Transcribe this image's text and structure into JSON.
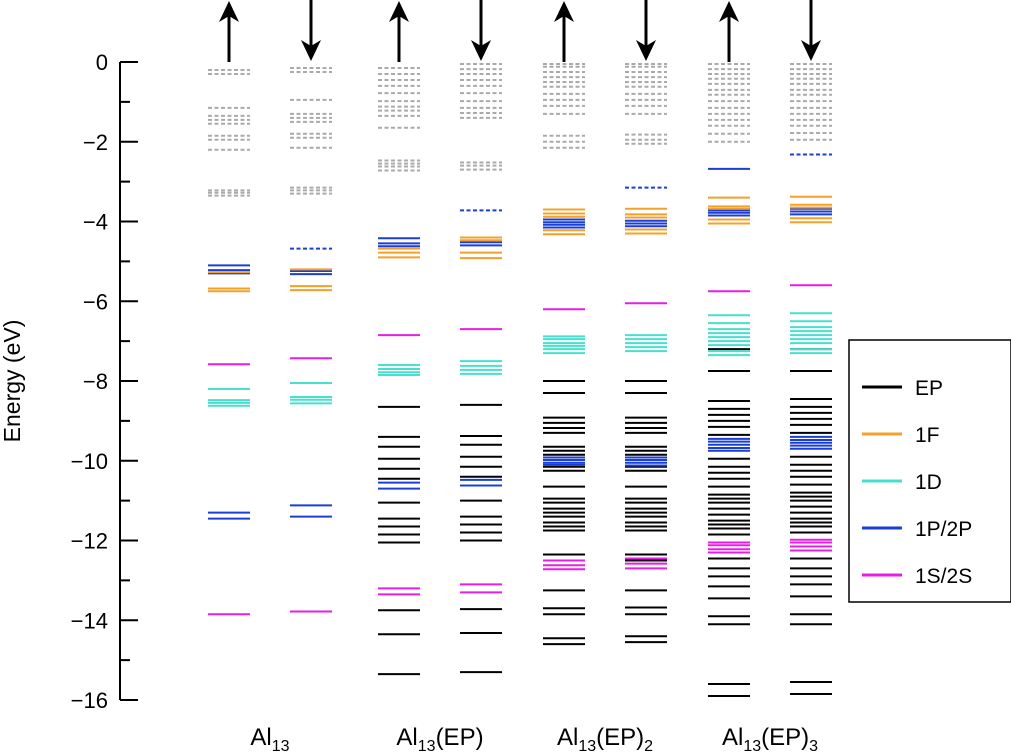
{
  "chart_data": {
    "type": "energy-level-diagram",
    "title": "",
    "ylabel": "Energy (eV)",
    "ylim": [
      -16,
      0
    ],
    "yticks": [
      0,
      -2,
      -4,
      -6,
      -8,
      -10,
      -12,
      -14,
      -16
    ],
    "ytick_labels": [
      "0",
      "−2",
      "−4",
      "−6",
      "−8",
      "−10",
      "−12",
      "−14",
      "−16"
    ],
    "colors": {
      "EP": "#000000",
      "1F": "#f5a028",
      "1D": "#47e0cc",
      "1P/2P": "#1a3fd9",
      "1S/2S": "#e61ee6",
      "unoccupied": "#aaaaaa"
    },
    "legend": {
      "placement": "right",
      "entries": [
        {
          "key": "EP",
          "label": "EP"
        },
        {
          "key": "1F",
          "label": "1F"
        },
        {
          "key": "1D",
          "label": "1D"
        },
        {
          "key": "1P/2P",
          "label": "1P/2P"
        },
        {
          "key": "1S/2S",
          "label": "1S/2S"
        }
      ]
    },
    "groups": [
      {
        "label_main": "Al",
        "label_sub": "13",
        "label_tail": "",
        "label_tail_sub": "",
        "spins": [
          {
            "arrow": "up",
            "levels": {
              "1S/2S": [
                -13.85,
                -7.58
              ],
              "1P/2P": [
                -11.45,
                -11.3,
                -5.3,
                -5.22,
                -5.1
              ],
              "1D": [
                -8.62,
                -8.55,
                -8.48,
                -8.2
              ],
              "1F": [
                -5.75,
                -5.68,
                -5.27
              ],
              "EP": [],
              "unoccupied": [
                -3.35,
                -3.28,
                -3.22,
                -2.2,
                -1.95,
                -1.85,
                -1.55,
                -1.45,
                -1.35,
                -1.15,
                -0.3,
                -0.2
              ],
              "lumo_dashed": []
            }
          },
          {
            "arrow": "down",
            "levels": {
              "1S/2S": [
                -13.78,
                -7.43
              ],
              "1P/2P": [
                -11.4,
                -11.12,
                -5.32,
                -5.24
              ],
              "1D": [
                -8.56,
                -8.47,
                -8.4,
                -8.05
              ],
              "1F": [
                -5.72,
                -5.62,
                -5.2
              ],
              "EP": [],
              "unoccupied": [
                -3.3,
                -3.22,
                -3.15,
                -2.15,
                -1.9,
                -1.8,
                -1.5,
                -1.4,
                -1.3,
                -0.95,
                -0.25,
                -0.15
              ],
              "lumo_dashed": [
                -4.68
              ]
            }
          }
        ]
      },
      {
        "label_main": "Al",
        "label_sub": "13",
        "label_tail": "(EP)",
        "label_tail_sub": "",
        "spins": [
          {
            "arrow": "up",
            "levels": {
              "1S/2S": [
                -13.35,
                -13.2,
                -6.85
              ],
              "1P/2P": [
                -10.7,
                -10.55,
                -4.62,
                -4.55,
                -4.42
              ],
              "1D": [
                -7.85,
                -7.78,
                -7.7,
                -7.6
              ],
              "1F": [
                -4.9,
                -4.78,
                -4.68
              ],
              "EP": [
                -15.35,
                -14.35,
                -13.75,
                -12.05,
                -11.85,
                -11.65,
                -11.45,
                -11.05,
                -10.45,
                -10.2,
                -9.95,
                -9.65,
                -9.4,
                -8.65
              ],
              "unoccupied": [
                -2.72,
                -2.62,
                -2.55,
                -2.47,
                -1.65,
                -1.35,
                -1.22,
                -1.12,
                -0.98,
                -0.78,
                -0.6,
                -0.45,
                -0.3,
                -0.15
              ],
              "lumo_dashed": []
            }
          },
          {
            "arrow": "down",
            "levels": {
              "1S/2S": [
                -13.3,
                -13.1,
                -6.7
              ],
              "1P/2P": [
                -10.62,
                -10.48,
                -4.6,
                -4.52
              ],
              "1D": [
                -7.82,
                -7.72,
                -7.62,
                -7.5
              ],
              "1F": [
                -4.92,
                -4.78,
                -4.47,
                -4.4
              ],
              "EP": [
                -15.3,
                -14.32,
                -13.72,
                -12.0,
                -11.8,
                -11.6,
                -11.4,
                -11.0,
                -10.4,
                -10.15,
                -9.9,
                -9.6,
                -9.38,
                -8.6
              ],
              "unoccupied": [
                -2.7,
                -2.6,
                -2.52,
                -1.4,
                -1.28,
                -1.15,
                -0.98,
                -0.78,
                -0.6,
                -0.45,
                -0.3,
                -0.18,
                -0.05
              ],
              "lumo_dashed": [
                -3.72
              ]
            }
          }
        ]
      },
      {
        "label_main": "Al",
        "label_sub": "13",
        "label_tail": "(EP)",
        "label_tail_sub": "2",
        "spins": [
          {
            "arrow": "up",
            "levels": {
              "1S/2S": [
                -12.72,
                -12.62,
                -12.5,
                -6.2
              ],
              "1P/2P": [
                -10.1,
                -10.05,
                -9.98,
                -9.92,
                -4.15,
                -4.08,
                -4.02,
                -3.95
              ],
              "1D": [
                -7.3,
                -7.2,
                -7.12,
                -7.05,
                -6.95,
                -6.88
              ],
              "1F": [
                -4.32,
                -4.22,
                -3.88,
                -3.8,
                -3.7
              ],
              "EP": [
                -14.6,
                -14.45,
                -13.85,
                -13.7,
                -13.25,
                -12.5,
                -12.35,
                -11.75,
                -11.65,
                -11.55,
                -11.4,
                -11.3,
                -11.2,
                -11.05,
                -10.95,
                -10.65,
                -10.25,
                -10.15,
                -9.85,
                -9.75,
                -9.65,
                -9.3,
                -9.18,
                -9.05,
                -8.92,
                -8.3,
                -8.0
              ],
              "unoccupied": [
                -2.15,
                -2.0,
                -1.85,
                -1.3,
                -1.1,
                -0.95,
                -0.8,
                -0.62,
                -0.5,
                -0.38,
                -0.25,
                -0.12,
                -0.05
              ],
              "lumo_dashed": []
            }
          },
          {
            "arrow": "down",
            "levels": {
              "1S/2S": [
                -12.7,
                -12.58,
                -12.45,
                -6.05
              ],
              "1P/2P": [
                -10.12,
                -10.05,
                -9.98,
                -9.92,
                -4.12,
                -4.05,
                -3.98
              ],
              "1D": [
                -7.25,
                -7.15,
                -7.05,
                -6.95,
                -6.85
              ],
              "1F": [
                -4.3,
                -4.2,
                -3.9,
                -3.82,
                -3.68
              ],
              "EP": [
                -14.55,
                -14.4,
                -13.85,
                -13.68,
                -13.25,
                -12.5,
                -12.35,
                -11.75,
                -11.65,
                -11.55,
                -11.4,
                -11.3,
                -11.2,
                -11.05,
                -10.95,
                -10.65,
                -10.25,
                -10.15,
                -9.85,
                -9.75,
                -9.65,
                -9.3,
                -9.18,
                -9.05,
                -8.92,
                -8.3,
                -8.0
              ],
              "unoccupied": [
                -2.05,
                -1.95,
                -1.82,
                -1.3,
                -1.1,
                -0.95,
                -0.8,
                -0.62,
                -0.5,
                -0.38,
                -0.25,
                -0.12,
                -0.05
              ],
              "lumo_dashed": [
                -3.15
              ]
            }
          }
        ]
      },
      {
        "label_main": "Al",
        "label_sub": "13",
        "label_tail": "(EP)",
        "label_tail_sub": "3",
        "spins": [
          {
            "arrow": "up",
            "levels": {
              "1S/2S": [
                -12.3,
                -12.22,
                -12.12,
                -12.05,
                -5.75
              ],
              "1P/2P": [
                -9.75,
                -9.68,
                -9.6,
                -9.52,
                -9.45,
                -3.85,
                -3.78,
                -3.72,
                -2.68
              ],
              "1D": [
                -7.35,
                -7.25,
                -7.1,
                -7.0,
                -6.9,
                -6.8,
                -6.7,
                -6.55,
                -6.35
              ],
              "1F": [
                -4.05,
                -3.95,
                -3.68,
                -3.62,
                -3.4
              ],
              "EP": [
                -15.9,
                -15.6,
                -14.1,
                -13.9,
                -13.45,
                -13.15,
                -12.9,
                -12.7,
                -12.45,
                -11.85,
                -11.7,
                -11.6,
                -11.5,
                -11.35,
                -11.2,
                -11.05,
                -10.95,
                -10.85,
                -10.65,
                -10.45,
                -10.3,
                -10.15,
                -9.95,
                -9.35,
                -9.15,
                -9.0,
                -8.85,
                -8.7,
                -8.5,
                -7.75,
                -7.2
              ],
              "unoccupied": [
                -2.0,
                -1.8,
                -1.6,
                -1.45,
                -1.3,
                -1.15,
                -0.98,
                -0.82,
                -0.7,
                -0.55,
                -0.42,
                -0.3,
                -0.18,
                -0.05
              ],
              "lumo_dashed": []
            }
          },
          {
            "arrow": "down",
            "levels": {
              "1S/2S": [
                -12.25,
                -12.15,
                -12.05,
                -11.98,
                -5.6
              ],
              "1P/2P": [
                -9.7,
                -9.62,
                -9.55,
                -9.48,
                -9.4,
                -3.82,
                -3.75,
                -3.68
              ],
              "1D": [
                -7.3,
                -7.2,
                -7.05,
                -6.95,
                -6.85,
                -6.75,
                -6.65,
                -6.5,
                -6.3
              ],
              "1F": [
                -4.02,
                -3.92,
                -3.65,
                -3.58,
                -3.38
              ],
              "EP": [
                -15.85,
                -15.55,
                -14.1,
                -13.85,
                -13.4,
                -13.1,
                -12.9,
                -12.7,
                -12.45,
                -11.8,
                -11.65,
                -11.55,
                -11.45,
                -11.3,
                -11.15,
                -11.0,
                -10.9,
                -10.8,
                -10.6,
                -10.4,
                -10.25,
                -10.1,
                -9.9,
                -9.3,
                -9.1,
                -8.95,
                -8.8,
                -8.65,
                -8.45,
                -7.75,
                -7.2
              ],
              "unoccupied": [
                -1.95,
                -1.78,
                -1.6,
                -1.45,
                -1.3,
                -1.15,
                -0.98,
                -0.82,
                -0.7,
                -0.55,
                -0.42,
                -0.3,
                -0.18,
                -0.05
              ],
              "lumo_dashed": [
                -2.32
              ]
            }
          }
        ]
      }
    ]
  }
}
